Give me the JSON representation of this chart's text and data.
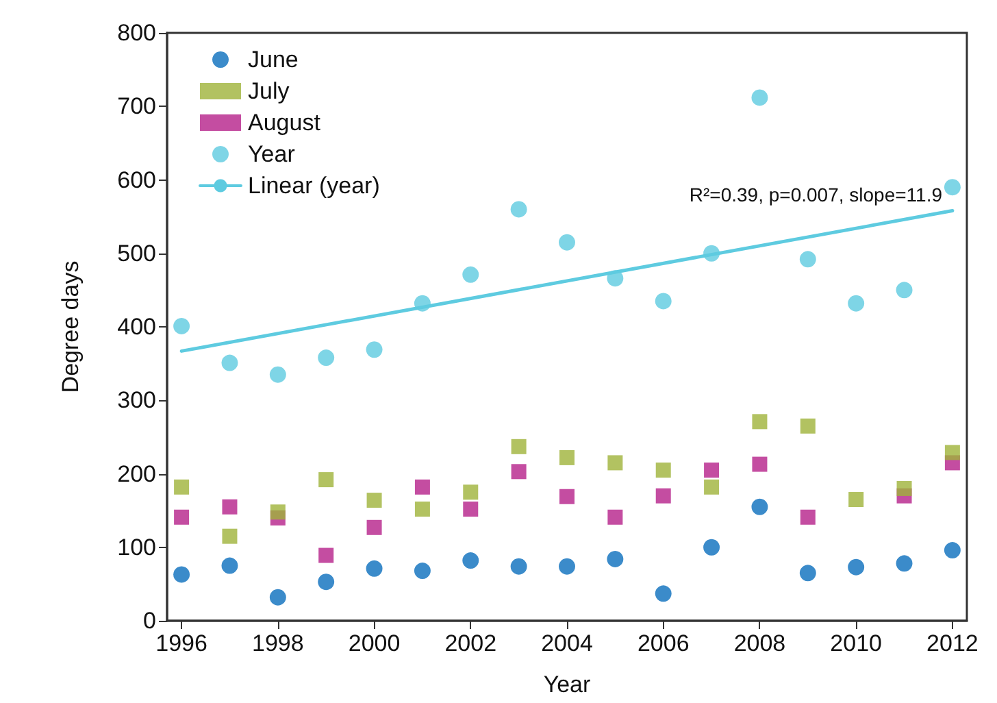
{
  "chart_data": {
    "type": "scatter",
    "xlabel": "Year",
    "ylabel": "Degree days",
    "x": [
      1996,
      1997,
      1998,
      1999,
      2000,
      2001,
      2002,
      2003,
      2004,
      2005,
      2006,
      2007,
      2008,
      2009,
      2010,
      2011,
      2012
    ],
    "series": [
      {
        "name": "June",
        "color": "#0a6ebd",
        "marker": "circle",
        "values": [
          63,
          75,
          32,
          53,
          71,
          68,
          82,
          74,
          74,
          84,
          37,
          100,
          155,
          65,
          73,
          78,
          96
        ]
      },
      {
        "name": "July",
        "color": "#9fb33a",
        "marker": "square",
        "values": [
          182,
          115,
          148,
          192,
          164,
          152,
          175,
          237,
          222,
          215,
          205,
          182,
          271,
          265,
          165,
          180,
          229
        ]
      },
      {
        "name": "August",
        "color": "#b5208a",
        "marker": "square",
        "values": [
          141,
          155,
          140,
          89,
          127,
          182,
          152,
          203,
          169,
          141,
          170,
          205,
          213,
          141,
          null,
          170,
          215
        ]
      },
      {
        "name": "Year",
        "color": "#5ecbe0",
        "marker": "circle",
        "values": [
          401,
          351,
          335,
          358,
          369,
          432,
          471,
          560,
          515,
          466,
          435,
          500,
          712,
          492,
          432,
          450,
          590
        ]
      },
      {
        "name": "Linear (year)",
        "type": "line",
        "color": "#5ecbe0",
        "marker": "none",
        "line_style": "solid",
        "x": [
          1996,
          2012
        ],
        "values": [
          367,
          558
        ]
      }
    ],
    "annotations": [
      "R²=0.39, p=0.007, slope=11.9"
    ],
    "xlim": [
      1995.7,
      2012.3
    ],
    "xticks": [
      1996,
      1998,
      2000,
      2002,
      2004,
      2006,
      2008,
      2010,
      2012
    ],
    "ylim": [
      0,
      800
    ],
    "yticks": [
      0,
      100,
      200,
      300,
      400,
      500,
      600,
      700,
      800
    ],
    "grid": false,
    "legend": "top left"
  }
}
